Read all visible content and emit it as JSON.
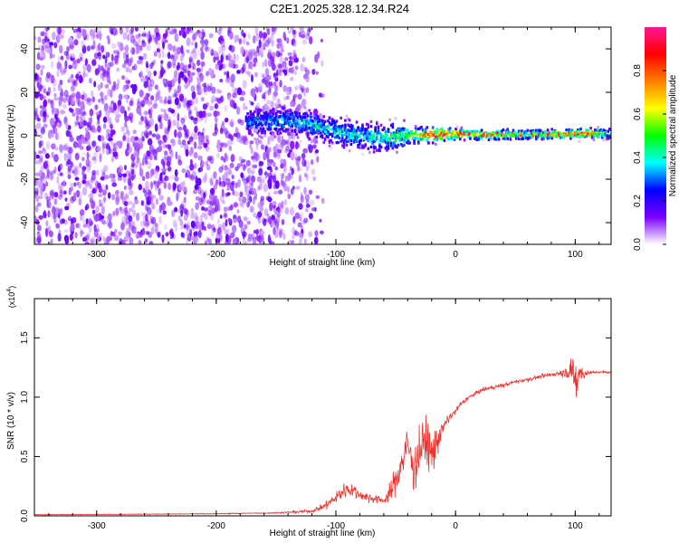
{
  "title": "C2E1.2025.328.12.34.R24",
  "chart_data": [
    {
      "type": "heatmap",
      "xlabel": "Height of straight line (km)",
      "ylabel": "Frequency (Hz)",
      "xlim": [
        -352,
        130
      ],
      "ylim": [
        -50,
        50
      ],
      "xticks": [
        -300,
        -200,
        -100,
        0,
        100
      ],
      "yticks": [
        -40,
        -20,
        0,
        20,
        40
      ],
      "xtick_labels": [
        "-300",
        "-200",
        "-100",
        "0",
        "100"
      ],
      "ytick_labels": [
        "-40",
        "-20",
        "0",
        "20",
        "40"
      ],
      "colorbar": {
        "label": "Normalized spectral amplitude",
        "range": [
          0,
          1
        ],
        "ticks": [
          0.0,
          0.2,
          0.4,
          0.6,
          0.8
        ],
        "tick_labels": [
          "0.0",
          "0.2",
          "0.4",
          "0.6",
          "0.8"
        ],
        "colormap": [
          "#ffffff",
          "#7b00ff",
          "#0000ff",
          "#00ffff",
          "#00ff00",
          "#ffff00",
          "#ff7f00",
          "#ff0000",
          "#ff1493"
        ]
      },
      "noise_region_x": [
        -352,
        -120
      ],
      "signal_ridge": [
        {
          "x": -175,
          "f": 6,
          "amp": 0.35
        },
        {
          "x": -140,
          "f": 7,
          "amp": 0.4
        },
        {
          "x": -120,
          "f": 5,
          "amp": 0.45
        },
        {
          "x": -100,
          "f": 2,
          "amp": 0.45
        },
        {
          "x": -80,
          "f": 0,
          "amp": 0.45
        },
        {
          "x": -60,
          "f": -1,
          "amp": 0.5
        },
        {
          "x": -40,
          "f": 0,
          "amp": 0.55
        },
        {
          "x": -20,
          "f": 0.5,
          "amp": 0.85
        },
        {
          "x": 0,
          "f": 1,
          "amp": 0.9
        },
        {
          "x": 20,
          "f": 0.5,
          "amp": 0.8
        },
        {
          "x": 60,
          "f": 0.5,
          "amp": 0.6
        },
        {
          "x": 100,
          "f": 1,
          "amp": 0.85
        },
        {
          "x": 130,
          "f": 1,
          "amp": 0.5
        }
      ]
    },
    {
      "type": "line",
      "xlabel": "Height of straight line (km)",
      "ylabel": "SNR (10 * v/v)",
      "y_multiplier_label": "(x10",
      "y_multiplier_exp": "4",
      "xlim": [
        -352,
        130
      ],
      "ylim": [
        0,
        18300
      ],
      "xticks": [
        -300,
        -200,
        -100,
        0,
        100
      ],
      "yticks": [
        0,
        5000,
        10000,
        15000
      ],
      "xtick_labels": [
        "-300",
        "-200",
        "-100",
        "0",
        "100"
      ],
      "ytick_labels": [
        "0.0",
        "0.5",
        "1.0",
        "1.5"
      ],
      "series": [
        {
          "name": "SNR",
          "color": "#e8342e",
          "x": [
            -352,
            -300,
            -250,
            -200,
            -150,
            -120,
            -110,
            -100,
            -95,
            -90,
            -85,
            -80,
            -75,
            -70,
            -65,
            -60,
            -55,
            -50,
            -45,
            -40,
            -35,
            -30,
            -25,
            -20,
            -15,
            -10,
            -5,
            0,
            5,
            10,
            15,
            20,
            25,
            30,
            40,
            50,
            60,
            70,
            80,
            85,
            90,
            95,
            100,
            105,
            110,
            120,
            130
          ],
          "y": [
            100,
            120,
            150,
            180,
            250,
            400,
            800,
            1500,
            2000,
            2300,
            2100,
            1800,
            1600,
            1500,
            1400,
            1300,
            1800,
            3000,
            4500,
            6000,
            4000,
            5500,
            6500,
            5000,
            6500,
            7500,
            8300,
            8800,
            9500,
            9900,
            10200,
            10500,
            10700,
            10800,
            11000,
            11300,
            11500,
            11700,
            11900,
            12000,
            12050,
            12150,
            12100,
            12000,
            12050,
            12100,
            12100
          ],
          "noise": [
            40,
            40,
            40,
            60,
            80,
            200,
            500,
            800,
            1000,
            1200,
            1000,
            700,
            700,
            600,
            500,
            600,
            1200,
            2000,
            2600,
            2800,
            2800,
            3000,
            3500,
            3000,
            2000,
            900,
            600,
            400,
            350,
            300,
            280,
            280,
            280,
            260,
            260,
            250,
            250,
            260,
            300,
            350,
            500,
            900,
            2200,
            1200,
            300,
            150,
            150
          ]
        }
      ]
    }
  ]
}
